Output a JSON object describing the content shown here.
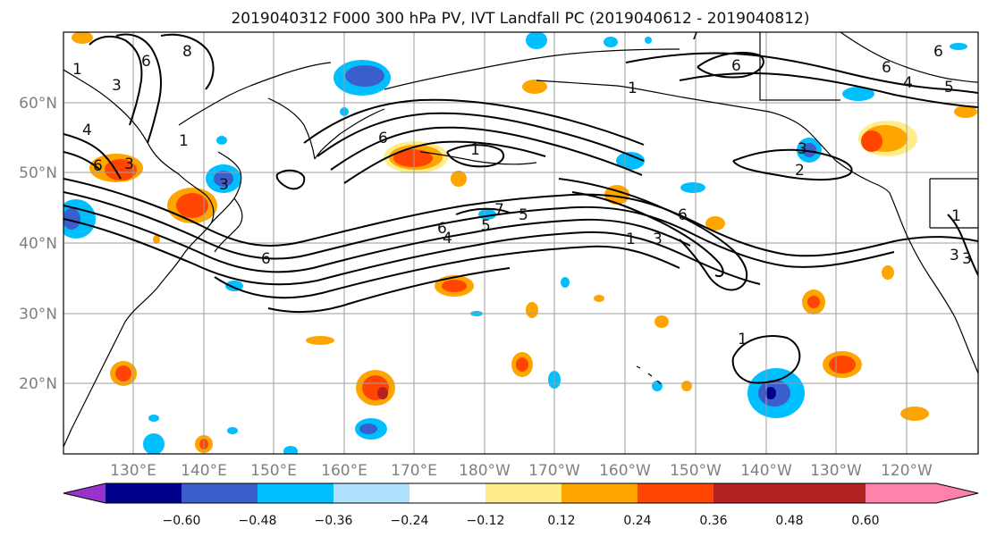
{
  "title": "2019040312 F000 300 hPa PV, IVT Landfall PC (2019040612 - 2019040812)",
  "lat_labels": [
    "60°N",
    "50°N",
    "40°N",
    "30°N",
    "20°N"
  ],
  "lon_labels": [
    "130°E",
    "140°E",
    "150°E",
    "160°E",
    "170°E",
    "180°W",
    "170°W",
    "160°W",
    "150°W",
    "140°W",
    "130°W",
    "120°W"
  ],
  "colorbar": {
    "colors": [
      "#9932cc",
      "#00008b",
      "#3a5fcd",
      "#00bfff",
      "#b0e2ff",
      "#ffffff",
      "#ffec8b",
      "#ffa500",
      "#ff4500",
      "#b22222",
      "#ff82ab"
    ],
    "tick_labels": [
      "−0.60",
      "−0.48",
      "−0.36",
      "−0.24",
      "−0.12",
      "0.12",
      "0.24",
      "0.36",
      "0.48",
      "0.60"
    ]
  },
  "contour_labels": [
    "1",
    "3",
    "6",
    "8",
    "4",
    "6",
    "3",
    "3",
    "6",
    "1",
    "6",
    "6",
    "5",
    "4",
    "7",
    "5",
    "6",
    "3",
    "1",
    "2",
    "3",
    "6",
    "6",
    "4",
    "5",
    "7",
    "1",
    "6",
    "3",
    "1",
    "1",
    "1",
    "3"
  ],
  "colors": {
    "land_line": "#000000",
    "grid": "#9e9e9e",
    "contour": "#000000"
  }
}
